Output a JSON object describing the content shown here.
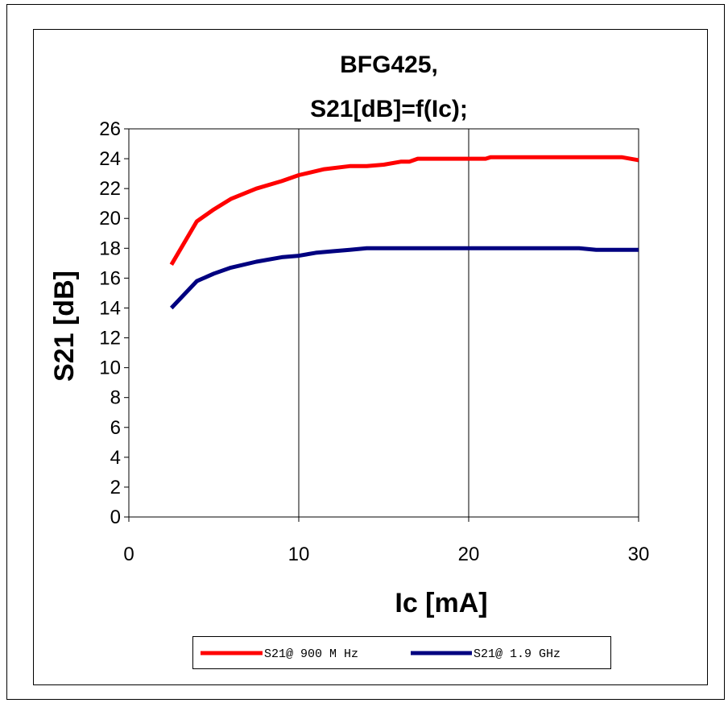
{
  "chart_data": {
    "type": "line",
    "title_line1": "BFG425,",
    "title_line2": "S21[dB]=f(Ic);",
    "xlabel": "Ic [mA]",
    "ylabel": "S21 [dB]",
    "xlim": [
      0,
      30
    ],
    "ylim": [
      0,
      26
    ],
    "xticks": [
      0,
      10,
      20,
      30
    ],
    "yticks": [
      0,
      2,
      4,
      6,
      8,
      10,
      12,
      14,
      16,
      18,
      20,
      22,
      24,
      26
    ],
    "grid": "vertical",
    "legend_position": "bottom",
    "series": [
      {
        "name": "S21@ 900 M Hz",
        "color": "#ff0000",
        "x": [
          2.5,
          4,
          5,
          6,
          7.5,
          9,
          10,
          11.5,
          13,
          14,
          15,
          16,
          16.5,
          17,
          18,
          19,
          20,
          21,
          21.3,
          22,
          24,
          26,
          28,
          29,
          30
        ],
        "y": [
          16.9,
          19.8,
          20.6,
          21.3,
          22.0,
          22.5,
          22.9,
          23.3,
          23.5,
          23.5,
          23.6,
          23.8,
          23.8,
          24.0,
          24.0,
          24.0,
          24.0,
          24.0,
          24.1,
          24.1,
          24.1,
          24.1,
          24.1,
          24.1,
          23.9
        ]
      },
      {
        "name": "S21@ 1.9 GHz",
        "color": "#000080",
        "x": [
          2.5,
          4,
          5,
          6,
          7.5,
          9,
          10,
          11,
          12,
          13,
          14,
          15,
          20,
          25,
          26.5,
          27.5,
          28,
          30
        ],
        "y": [
          14.0,
          15.8,
          16.3,
          16.7,
          17.1,
          17.4,
          17.5,
          17.7,
          17.8,
          17.9,
          18.0,
          18.0,
          18.0,
          18.0,
          18.0,
          17.9,
          17.9,
          17.9
        ]
      }
    ]
  }
}
